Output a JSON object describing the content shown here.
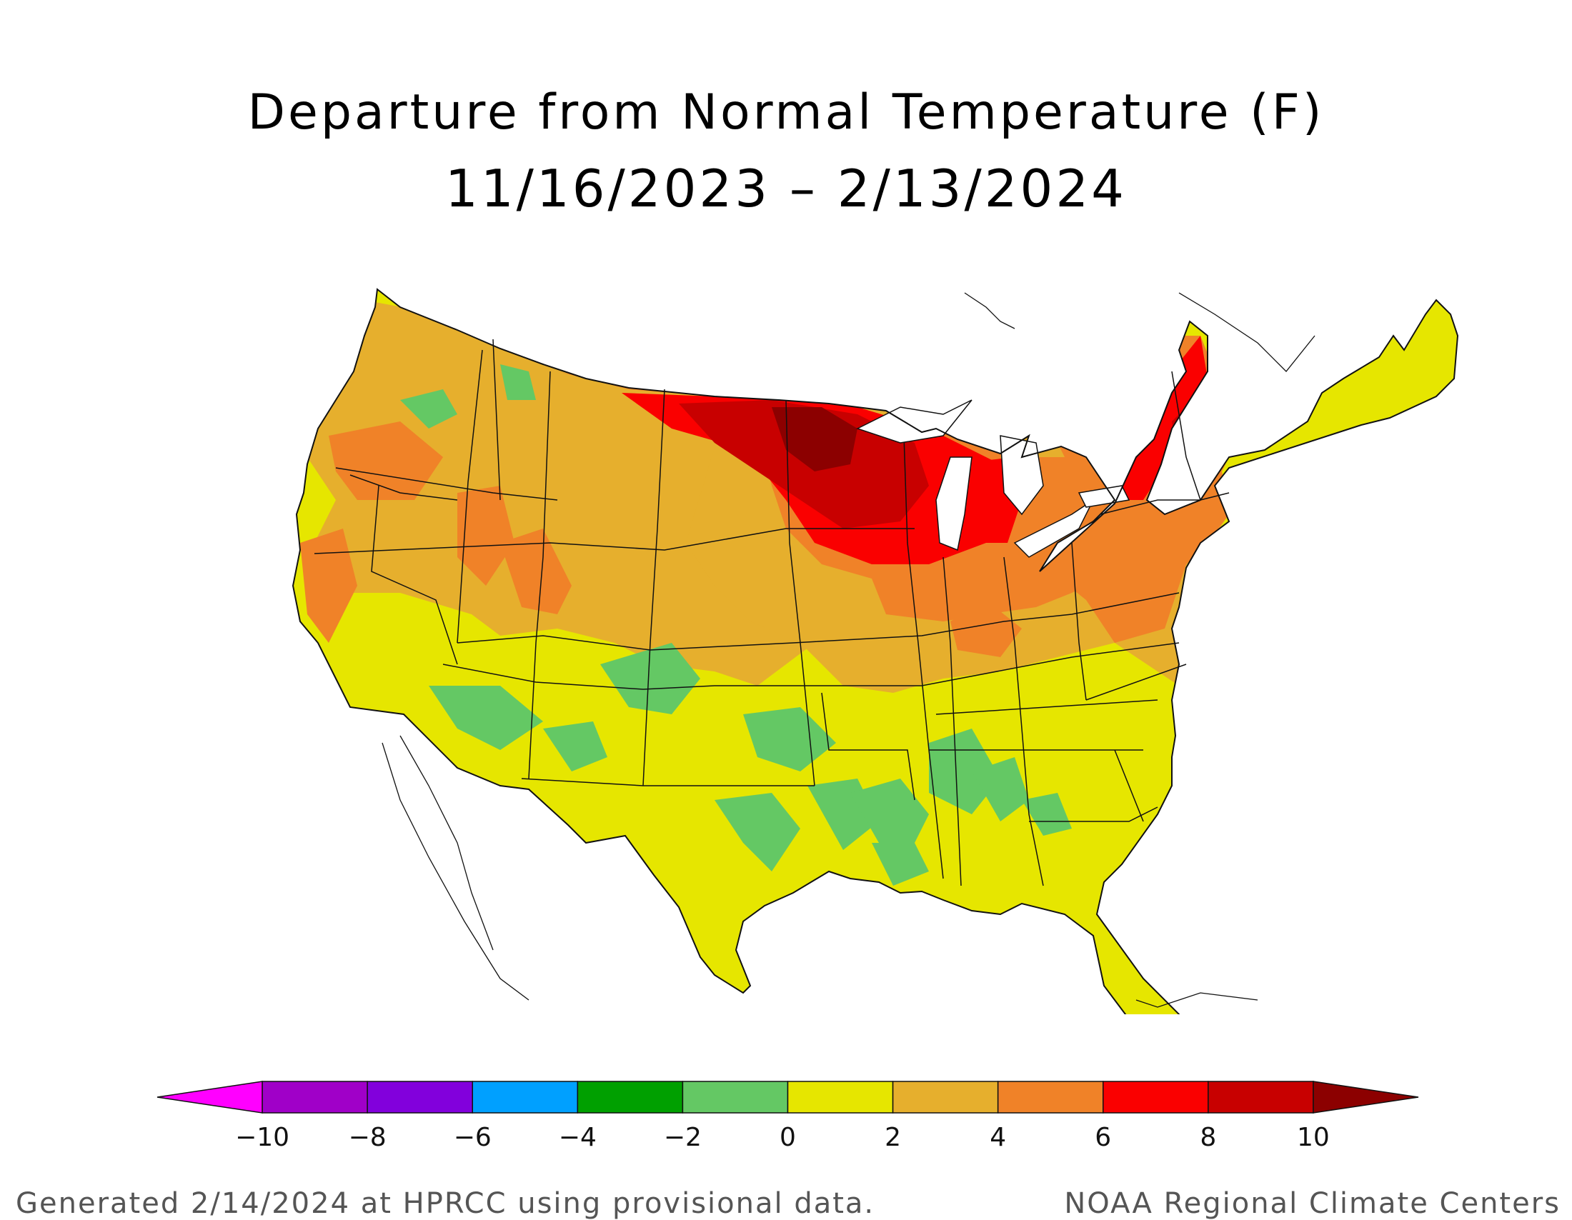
{
  "title": "Departure from Normal Temperature (F)",
  "subtitle": "11/16/2023 – 2/13/2024",
  "footer": {
    "left": "Generated 2/14/2024 at HPRCC using provisional data.",
    "right": "NOAA Regional Climate Centers"
  },
  "legend": {
    "ticks": [
      "−10",
      "−8",
      "−6",
      "−4",
      "−2",
      "0",
      "2",
      "4",
      "6",
      "8",
      "10"
    ],
    "bins": [
      {
        "range": "< -10",
        "color": "#ff00ff"
      },
      {
        "range": "-10 to -8",
        "color": "#a000c8"
      },
      {
        "range": "-8 to -6",
        "color": "#8200dc"
      },
      {
        "range": "-6 to -4",
        "color": "#00a0ff"
      },
      {
        "range": "-4 to -2",
        "color": "#00a000"
      },
      {
        "range": "-2 to 0",
        "color": "#64c864"
      },
      {
        "range": "0 to 2",
        "color": "#e6e600"
      },
      {
        "range": "2 to 4",
        "color": "#e6af2d"
      },
      {
        "range": "4 to 6",
        "color": "#f08228"
      },
      {
        "range": "6 to 8",
        "color": "#fa0000"
      },
      {
        "range": "8 to 10",
        "color": "#c80000"
      },
      {
        "range": "> 10",
        "color": "#8c0000"
      }
    ]
  },
  "map": {
    "region": "Contiguous United States",
    "dominant_anomaly_by_area": [
      {
        "area": "Upper Midwest (MN, WI, ND, northern IA, Upper MI)",
        "anomaly": "8 to 10+"
      },
      {
        "area": "Northeast / New England / New York",
        "anomaly": "6 to 8"
      },
      {
        "area": "Great Lakes / Ohio Valley",
        "anomaly": "4 to 6"
      },
      {
        "area": "Northern Plains & Northern Rockies",
        "anomaly": "2 to 6"
      },
      {
        "area": "Pacific Northwest & Great Basin",
        "anomaly": "2 to 4"
      },
      {
        "area": "California, Southwest, Southern Plains",
        "anomaly": "0 to 2"
      },
      {
        "area": "Texas, Lower Mississippi Valley, Gulf Coast",
        "anomaly": "-2 to 2"
      },
      {
        "area": "Southeast & Florida",
        "anomaly": "0 to 2"
      }
    ]
  }
}
